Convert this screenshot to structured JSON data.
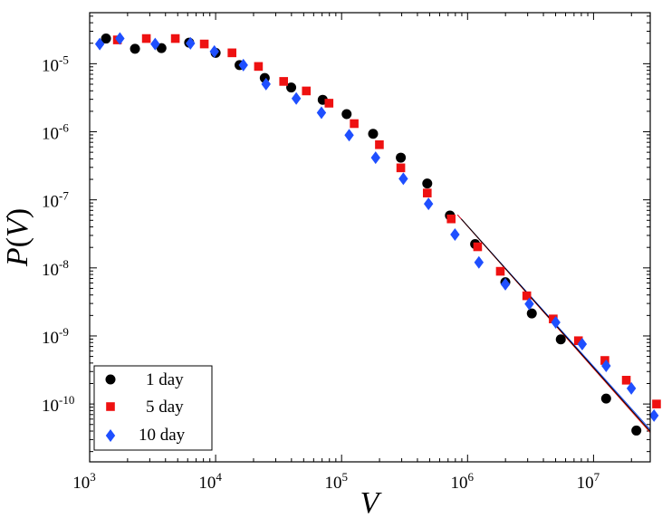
{
  "chart_data": {
    "type": "scatter",
    "title": "",
    "xlabel": "V",
    "ylabel_parts": {
      "func": "P",
      "open": "(",
      "var": "V",
      "close": ")"
    },
    "xscale": "log",
    "yscale": "log",
    "xlim_exp": [
      3,
      7.45
    ],
    "ylim_exp": [
      -10.85,
      -4.25
    ],
    "x_ticks": [
      {
        "base": "10",
        "exp": "3",
        "value_exp": 3
      },
      {
        "base": "10",
        "exp": "4",
        "value_exp": 4
      },
      {
        "base": "10",
        "exp": "5",
        "value_exp": 5
      },
      {
        "base": "10",
        "exp": "6",
        "value_exp": 6
      },
      {
        "base": "10",
        "exp": "7",
        "value_exp": 7
      }
    ],
    "y_ticks": [
      {
        "base": "10",
        "exp": "-5",
        "value_exp": -5
      },
      {
        "base": "10",
        "exp": "-6",
        "value_exp": -6
      },
      {
        "base": "10",
        "exp": "-7",
        "value_exp": -7
      },
      {
        "base": "10",
        "exp": "-8",
        "value_exp": -8
      },
      {
        "base": "10",
        "exp": "-9",
        "value_exp": -9
      },
      {
        "base": "10",
        "exp": "-10",
        "value_exp": -10
      }
    ],
    "legend_position": "bottom-left",
    "series": [
      {
        "name": "1 day",
        "marker": "circle",
        "color": "#000000",
        "points_log10": [
          [
            3.13,
            -4.63
          ],
          [
            3.36,
            -4.78
          ],
          [
            3.57,
            -4.77
          ],
          [
            3.79,
            -4.69
          ],
          [
            4.0,
            -4.84
          ],
          [
            4.19,
            -5.02
          ],
          [
            4.39,
            -5.21
          ],
          [
            4.6,
            -5.35
          ],
          [
            4.85,
            -5.53
          ],
          [
            5.04,
            -5.74
          ],
          [
            5.25,
            -6.03
          ],
          [
            5.47,
            -6.38
          ],
          [
            5.68,
            -6.76
          ],
          [
            5.86,
            -7.23
          ],
          [
            6.06,
            -7.65
          ],
          [
            6.3,
            -8.21
          ],
          [
            6.51,
            -8.67
          ],
          [
            6.74,
            -9.05
          ],
          [
            7.1,
            -9.92
          ],
          [
            7.34,
            -10.39
          ]
        ],
        "fit_log10": [
          [
            5.95,
            -7.28
          ],
          [
            7.68,
            -10.88
          ]
        ]
      },
      {
        "name": "5 day",
        "marker": "square",
        "color": "#ee1111",
        "points_log10": [
          [
            3.22,
            -4.65
          ],
          [
            3.45,
            -4.63
          ],
          [
            3.68,
            -4.63
          ],
          [
            3.91,
            -4.71
          ],
          [
            4.13,
            -4.84
          ],
          [
            4.34,
            -5.04
          ],
          [
            4.54,
            -5.26
          ],
          [
            4.72,
            -5.4
          ],
          [
            4.9,
            -5.58
          ],
          [
            5.1,
            -5.88
          ],
          [
            5.3,
            -6.19
          ],
          [
            5.47,
            -6.53
          ],
          [
            5.68,
            -6.9
          ],
          [
            5.87,
            -7.28
          ],
          [
            6.08,
            -7.69
          ],
          [
            6.26,
            -8.05
          ],
          [
            6.47,
            -8.41
          ],
          [
            6.68,
            -8.75
          ],
          [
            6.88,
            -9.07
          ],
          [
            7.09,
            -9.36
          ],
          [
            7.26,
            -9.65
          ],
          [
            7.5,
            -10.0
          ]
        ],
        "fit_log10": [
          [
            5.92,
            -7.22
          ],
          [
            7.68,
            -10.9
          ]
        ]
      },
      {
        "name": "10 day",
        "marker": "diamond",
        "color": "#1f4fff",
        "points_log10": [
          [
            3.08,
            -4.71
          ],
          [
            3.24,
            -4.63
          ],
          [
            3.52,
            -4.71
          ],
          [
            3.8,
            -4.7
          ],
          [
            3.99,
            -4.82
          ],
          [
            4.22,
            -5.02
          ],
          [
            4.4,
            -5.3
          ],
          [
            4.64,
            -5.51
          ],
          [
            4.84,
            -5.72
          ],
          [
            5.06,
            -6.05
          ],
          [
            5.27,
            -6.38
          ],
          [
            5.49,
            -6.69
          ],
          [
            5.69,
            -7.06
          ],
          [
            5.9,
            -7.51
          ],
          [
            6.09,
            -7.92
          ],
          [
            6.3,
            -8.24
          ],
          [
            6.49,
            -8.53
          ],
          [
            6.7,
            -8.8
          ],
          [
            6.91,
            -9.12
          ],
          [
            7.1,
            -9.44
          ],
          [
            7.3,
            -9.77
          ],
          [
            7.48,
            -10.17
          ]
        ],
        "fit_log10": [
          [
            5.92,
            -7.22
          ],
          [
            7.68,
            -10.85
          ]
        ]
      }
    ]
  }
}
